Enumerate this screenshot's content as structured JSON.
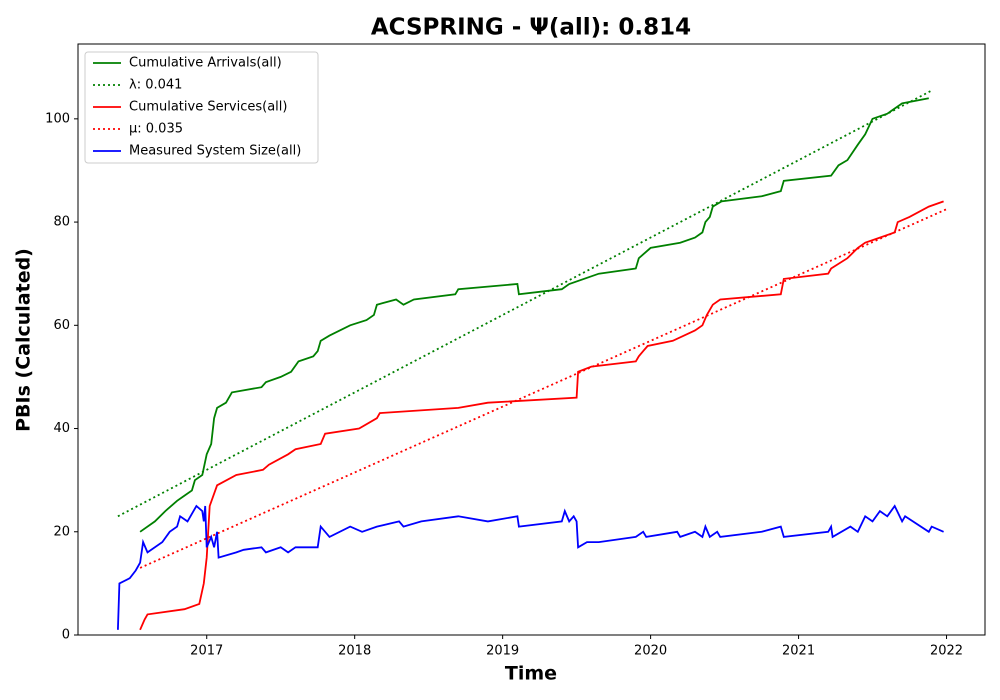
{
  "chart_data": {
    "type": "line",
    "title": "ACSPRING -  Ψ(all): 0.814",
    "x_label": "Time",
    "y_label": "PBIs (Calculated)",
    "xlim": [
      2016.13,
      2022.26
    ],
    "ylim": [
      0,
      114.5
    ],
    "xticks": [
      2017,
      2018,
      2019,
      2020,
      2021,
      2022
    ],
    "yticks": [
      0,
      20,
      40,
      60,
      80,
      100
    ],
    "legend": "upper left",
    "series": [
      {
        "name": "Cumulative Arrivals(all)",
        "color": "#008000",
        "style": "solid",
        "x": [
          2016.55,
          2016.65,
          2016.72,
          2016.8,
          2016.85,
          2016.9,
          2016.92,
          2016.97,
          2017.0,
          2017.03,
          2017.05,
          2017.07,
          2017.13,
          2017.17,
          2017.37,
          2017.4,
          2017.5,
          2017.57,
          2017.62,
          2017.72,
          2017.75,
          2017.77,
          2017.83,
          2017.97,
          2018.08,
          2018.13,
          2018.15,
          2018.28,
          2018.33,
          2018.4,
          2018.68,
          2018.7,
          2019.1,
          2019.11,
          2019.4,
          2019.45,
          2019.65,
          2019.9,
          2019.92,
          2020.0,
          2020.2,
          2020.3,
          2020.35,
          2020.37,
          2020.4,
          2020.42,
          2020.48,
          2020.75,
          2020.88,
          2020.9,
          2021.22,
          2021.27,
          2021.33,
          2021.4,
          2021.45,
          2021.5,
          2021.6,
          2021.7,
          2021.88
        ],
        "values": [
          20,
          22,
          24,
          26,
          27,
          28,
          30,
          31,
          35,
          37,
          42,
          44,
          45,
          47,
          48,
          49,
          50,
          51,
          53,
          54,
          55,
          57,
          58,
          60,
          61,
          62,
          64,
          65,
          64,
          65,
          66,
          67,
          68,
          66,
          67,
          68,
          70,
          71,
          73,
          75,
          76,
          77,
          78,
          80,
          81,
          83,
          84,
          85,
          86,
          88,
          89,
          91,
          92,
          95,
          97,
          100,
          101,
          103,
          104
        ]
      },
      {
        "name": "λ: 0.041",
        "color": "#008000",
        "style": "dotted",
        "x": [
          2016.4,
          2021.9
        ],
        "values": [
          23,
          105.5
        ]
      },
      {
        "name": "Cumulative Services(all)",
        "color": "#ff0000",
        "style": "solid",
        "x": [
          2016.55,
          2016.58,
          2016.6,
          2016.85,
          2016.95,
          2016.98,
          2017.0,
          2017.02,
          2017.07,
          2017.2,
          2017.38,
          2017.42,
          2017.55,
          2017.6,
          2017.77,
          2017.8,
          2018.03,
          2018.15,
          2018.17,
          2018.7,
          2018.9,
          2019.5,
          2019.51,
          2019.6,
          2019.9,
          2019.92,
          2019.95,
          2019.98,
          2020.15,
          2020.3,
          2020.35,
          2020.38,
          2020.42,
          2020.47,
          2020.88,
          2020.9,
          2021.2,
          2021.22,
          2021.33,
          2021.4,
          2021.45,
          2021.55,
          2021.65,
          2021.67,
          2021.75,
          2021.88,
          2021.98
        ],
        "values": [
          1,
          3,
          4,
          5,
          6,
          10,
          15,
          25,
          29,
          31,
          32,
          33,
          35,
          36,
          37,
          39,
          40,
          42,
          43,
          44,
          45,
          46,
          51,
          52,
          53,
          54,
          55,
          56,
          57,
          59,
          60,
          62,
          64,
          65,
          66,
          69,
          70,
          71,
          73,
          75,
          76,
          77,
          78,
          80,
          81,
          83,
          84
        ]
      },
      {
        "name": "μ: 0.035",
        "color": "#ff0000",
        "style": "dotted",
        "x": [
          2016.55,
          2022.0
        ],
        "values": [
          13,
          82.5
        ]
      },
      {
        "name": "Measured System Size(all)",
        "color": "#0000ff",
        "style": "solid",
        "x": [
          2016.4,
          2016.41,
          2016.48,
          2016.52,
          2016.55,
          2016.57,
          2016.6,
          2016.7,
          2016.75,
          2016.8,
          2016.82,
          2016.87,
          2016.93,
          2016.97,
          2016.98,
          2016.99,
          2017.0,
          2017.03,
          2017.05,
          2017.07,
          2017.08,
          2017.2,
          2017.25,
          2017.37,
          2017.4,
          2017.5,
          2017.55,
          2017.6,
          2017.75,
          2017.77,
          2017.83,
          2017.97,
          2018.05,
          2018.15,
          2018.3,
          2018.33,
          2018.45,
          2018.7,
          2018.9,
          2019.1,
          2019.11,
          2019.4,
          2019.42,
          2019.45,
          2019.48,
          2019.5,
          2019.51,
          2019.57,
          2019.65,
          2019.9,
          2019.95,
          2019.97,
          2020.18,
          2020.2,
          2020.3,
          2020.35,
          2020.37,
          2020.4,
          2020.45,
          2020.47,
          2020.75,
          2020.88,
          2020.9,
          2021.2,
          2021.22,
          2021.23,
          2021.35,
          2021.4,
          2021.45,
          2021.5,
          2021.55,
          2021.6,
          2021.65,
          2021.7,
          2021.72,
          2021.88,
          2021.9,
          2021.98
        ],
        "values": [
          1,
          10,
          11,
          12.5,
          14,
          18,
          16,
          18,
          20,
          21,
          23,
          22,
          25,
          24,
          22,
          25,
          17,
          19,
          17,
          20,
          15,
          16,
          16.5,
          17,
          16,
          17,
          16,
          17,
          17,
          21,
          19,
          21,
          20,
          21,
          22,
          21,
          22,
          23,
          22,
          23,
          21,
          22,
          24,
          22,
          23,
          22,
          17,
          18,
          18,
          19,
          20,
          19,
          20,
          19,
          20,
          19,
          21,
          19,
          20,
          19,
          20,
          21,
          19,
          20,
          21,
          19,
          21,
          20,
          23,
          22,
          24,
          23,
          25,
          22,
          23,
          20,
          21,
          20
        ]
      }
    ]
  }
}
